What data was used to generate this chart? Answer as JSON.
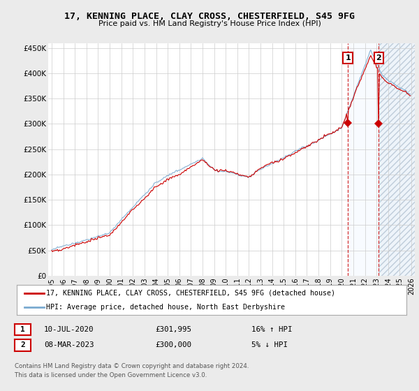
{
  "title": "17, KENNING PLACE, CLAY CROSS, CHESTERFIELD, S45 9FG",
  "subtitle": "Price paid vs. HM Land Registry's House Price Index (HPI)",
  "legend_line1": "17, KENNING PLACE, CLAY CROSS, CHESTERFIELD, S45 9FG (detached house)",
  "legend_line2": "HPI: Average price, detached house, North East Derbyshire",
  "footer1": "Contains HM Land Registry data © Crown copyright and database right 2024.",
  "footer2": "This data is licensed under the Open Government Licence v3.0.",
  "annotation1": {
    "num": "1",
    "date": "10-JUL-2020",
    "price": "£301,995",
    "pct": "16% ↑ HPI"
  },
  "annotation2": {
    "num": "2",
    "date": "08-MAR-2023",
    "price": "£300,000",
    "pct": "5% ↓ HPI"
  },
  "sale1_year": 2020.53,
  "sale2_year": 2023.18,
  "sale1_price": 301995,
  "sale2_price": 300000,
  "red_color": "#cc0000",
  "blue_color": "#7aaad0",
  "shade_color": "#ddeeff",
  "bg_color": "#ebebeb",
  "plot_bg": "#ffffff",
  "ylim": [
    0,
    460000
  ],
  "yticks": [
    0,
    50000,
    100000,
    150000,
    200000,
    250000,
    300000,
    350000,
    400000,
    450000
  ],
  "ytick_labels": [
    "£0",
    "£50K",
    "£100K",
    "£150K",
    "£200K",
    "£250K",
    "£300K",
    "£350K",
    "£400K",
    "£450K"
  ],
  "xlim_start": 1995.0,
  "xlim_end": 2026.3,
  "xticks": [
    1995,
    1996,
    1997,
    1998,
    1999,
    2000,
    2001,
    2002,
    2003,
    2004,
    2005,
    2006,
    2007,
    2008,
    2009,
    2010,
    2011,
    2012,
    2013,
    2014,
    2015,
    2016,
    2017,
    2018,
    2019,
    2020,
    2021,
    2022,
    2023,
    2024,
    2025,
    2026
  ]
}
